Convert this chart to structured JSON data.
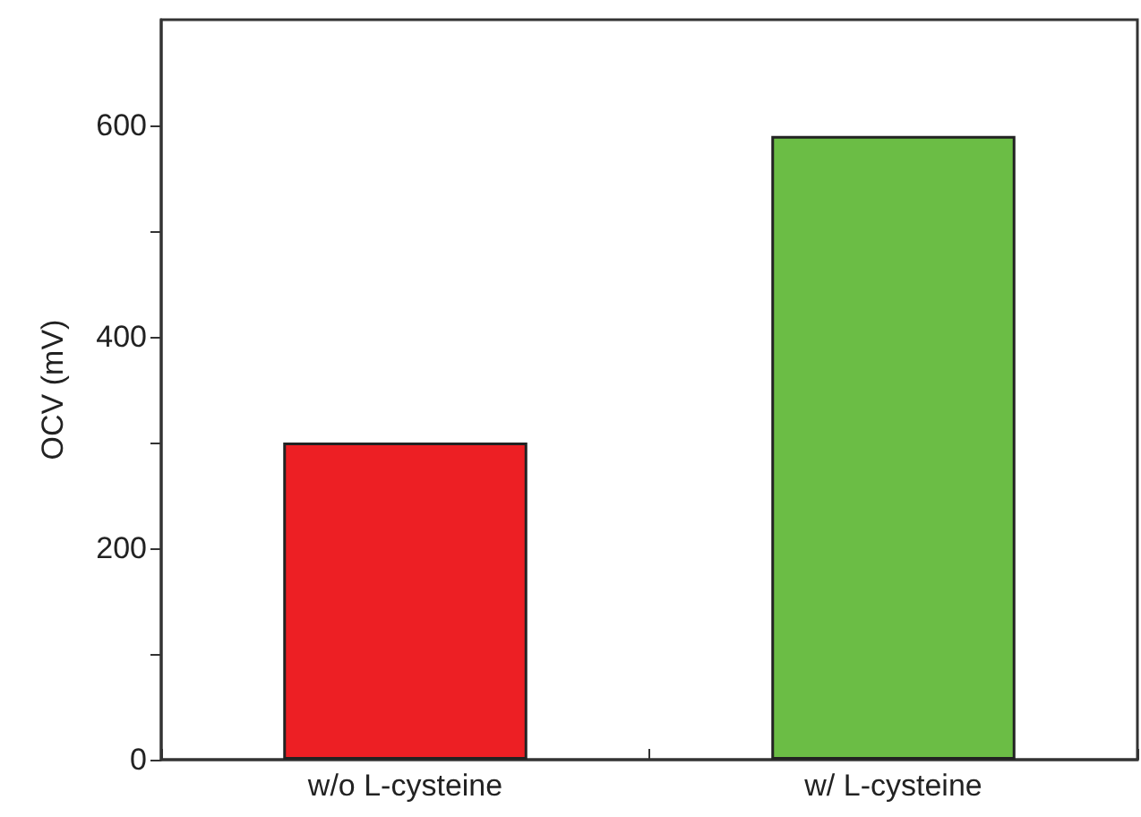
{
  "chart_data": {
    "type": "bar",
    "ylabel": "OCV (mV)",
    "categories": [
      "w/o L-cysteine",
      "w/ L-cysteine"
    ],
    "values": [
      300,
      590
    ],
    "colors": [
      "#ed1f24",
      "#6bbd45"
    ],
    "ylim": [
      0,
      700
    ],
    "yticks": [
      0,
      {
        "value": 100,
        "label": null
      },
      200,
      {
        "value": 300,
        "label": null
      },
      400,
      {
        "value": 500,
        "label": null
      },
      600
    ],
    "grid": false
  }
}
